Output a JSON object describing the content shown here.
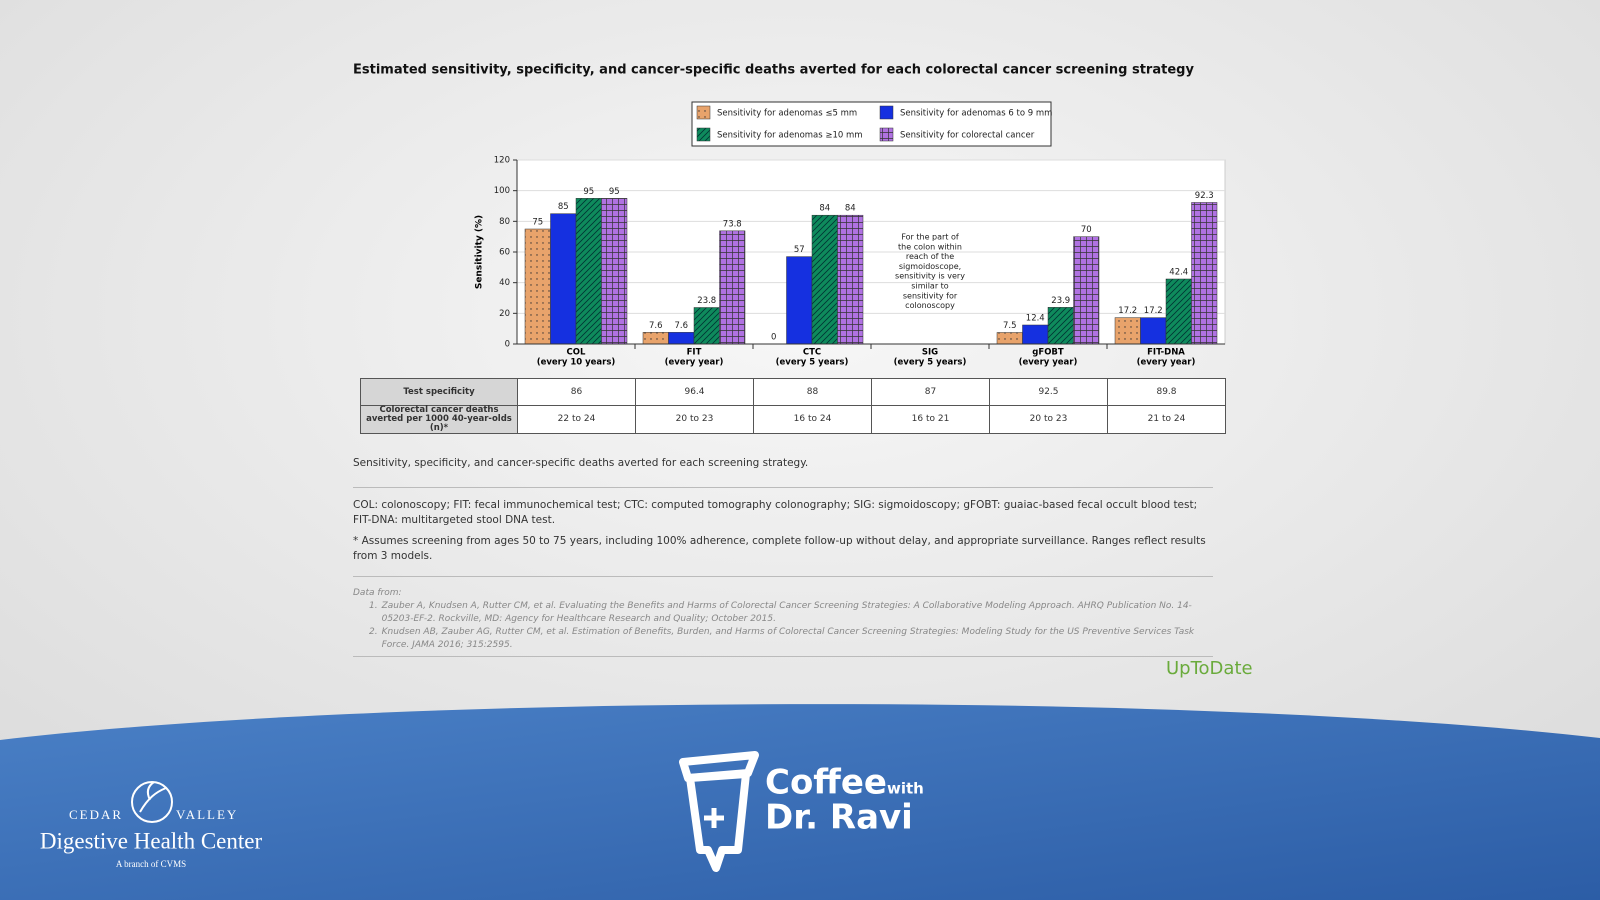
{
  "chart_data": {
    "type": "bar",
    "title": "Estimated sensitivity, specificity, and cancer-specific deaths averted for each colorectal cancer screening strategy",
    "y_label": "Sensitivity (%)",
    "categories": [
      "COL",
      "FIT",
      "CTC",
      "SIG",
      "gFOBT",
      "FIT-DNA"
    ],
    "category_sublabels": [
      "(every 10 years)",
      "(every year)",
      "(every 5 years)",
      "(every 5 years)",
      "(every year)",
      "(every year)"
    ],
    "series": [
      {
        "name": "Sensitivity for adenomas ≤5 mm",
        "color": "#e8a36b",
        "pattern": "dots",
        "values": [
          75,
          7.6,
          0,
          null,
          7.5,
          17.2
        ]
      },
      {
        "name": "Sensitivity for adenomas 6 to 9 mm",
        "color": "#1530e0",
        "pattern": "none",
        "values": [
          85,
          7.6,
          57,
          null,
          12.4,
          17.2
        ]
      },
      {
        "name": "Sensitivity for adenomas ≥10 mm",
        "color": "#0e8a5c",
        "pattern": "hatch",
        "values": [
          95,
          23.8,
          84,
          null,
          23.9,
          42.4
        ]
      },
      {
        "name": "Sensitivity for colorectal cancer",
        "color": "#b072e2",
        "pattern": "grid",
        "values": [
          95,
          73.8,
          84,
          null,
          70,
          92.3
        ]
      }
    ],
    "annotation_lines": [
      "For the part of",
      "the colon within",
      "reach of the",
      "sigmoidoscope,",
      "sensitivity is very",
      "similar to",
      "sensitivity for",
      "colonoscopy"
    ],
    "ylim": [
      0,
      120
    ],
    "yticks": [
      0,
      20,
      40,
      60,
      80,
      100,
      120
    ],
    "grid": true
  },
  "table": {
    "rows": [
      {
        "label": "Test specificity",
        "cells": [
          86,
          96.4,
          88,
          87,
          92.5,
          89.8
        ]
      },
      {
        "label": "Colorectal cancer deaths averted per 1000 40-year-olds (n)*",
        "cells": [
          "22 to 24",
          "20 to 23",
          "16 to 24",
          "16 to 21",
          "20 to 23",
          "21 to 24"
        ]
      }
    ]
  },
  "caption": "Sensitivity, specificity, and cancer-specific deaths averted for each screening strategy.",
  "notes": [
    "COL: colonoscopy; FIT: fecal immunochemical test; CTC: computed tomography colonography; SIG: sigmoidoscopy; gFOBT: guaiac-based fecal occult blood test; FIT-DNA: multitargeted stool DNA test.",
    "* Assumes screening from ages 50 to 75 years, including 100% adherence, complete follow-up without delay, and appropriate surveillance. Ranges reflect results from 3 models."
  ],
  "sources": {
    "heading": "Data from:",
    "items": [
      {
        "number": "1.",
        "text": "Zauber A, Knudsen A, Rutter CM, et al. Evaluating the Benefits and Harms of Colorectal Cancer Screening Strategies: A Collaborative Modeling Approach. AHRQ Publication No. 14-05203-EF-2. Rockville, MD: Agency for Healthcare Research and Quality; October 2015."
      },
      {
        "number": "2.",
        "text": "Knudsen AB, Zauber AG, Rutter CM, et al. Estimation of Benefits, Burden, and Harms of Colorectal Cancer Screening Strategies: Modeling Study for the US Preventive Services Task Force. JAMA 2016; 315:2595."
      }
    ]
  },
  "brand": {
    "uptodate": "UpToDate",
    "logo_left": "CEDAR",
    "logo_right": "VALLEY",
    "logo_name": "Digestive Health Center",
    "logo_sub": "A branch of CVMS",
    "show_coffee": "Coffee",
    "show_with": "with",
    "show_host": "Dr. Ravi"
  }
}
